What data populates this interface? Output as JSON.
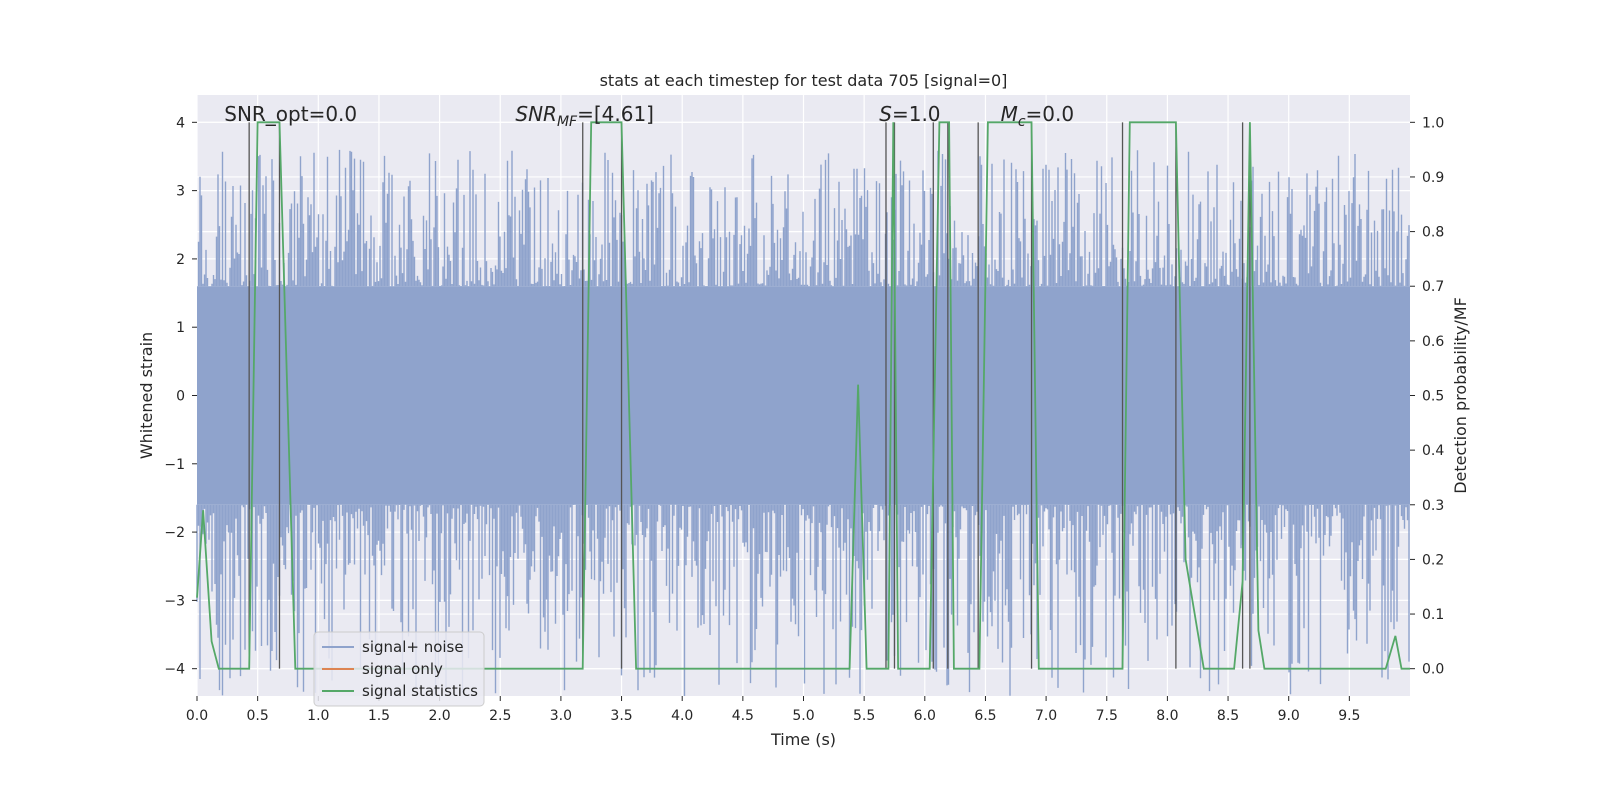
{
  "chart_data": {
    "type": "line",
    "title": "stats at each timestep for test data 705 [signal=0]",
    "xlabel": "Time (s)",
    "ylabel_left": "Whitened strain",
    "ylabel_right": "Detection probability/MF",
    "xlim": [
      0.0,
      10.0
    ],
    "ylim_left": [
      -4.4,
      4.4
    ],
    "ylim_right": [
      -0.05,
      1.05
    ],
    "xticks": [
      "0.0",
      "0.5",
      "1.0",
      "1.5",
      "2.0",
      "2.5",
      "3.0",
      "3.5",
      "4.0",
      "4.5",
      "5.0",
      "5.5",
      "6.0",
      "6.5",
      "7.0",
      "7.5",
      "8.0",
      "8.5",
      "9.0",
      "9.5"
    ],
    "yticks_left": [
      "−4",
      "−3",
      "−2",
      "−1",
      "0",
      "1",
      "2",
      "3",
      "4"
    ],
    "yticks_right": [
      "0.0",
      "0.1",
      "0.2",
      "0.3",
      "0.4",
      "0.5",
      "0.6",
      "0.7",
      "0.8",
      "0.9",
      "1.0"
    ],
    "grid": true,
    "legend_position": "lower-left",
    "annotations": [
      {
        "name": "snr-opt",
        "x": 0.2,
        "text": "SNR_opt=0.0"
      },
      {
        "name": "snr-mf",
        "x": 2.6,
        "prefix": "SNR",
        "sub": "MF",
        "suffix": "=[4.61]"
      },
      {
        "name": "s-value",
        "x": 5.6,
        "prefix": "S",
        "suffix": "=1.0"
      },
      {
        "name": "mc-value",
        "x": 6.6,
        "prefix": "M",
        "sub": "c",
        "suffix": "=0.0"
      }
    ],
    "series": [
      {
        "name": "signal+ noise",
        "color": "#8fa3cc",
        "axis": "left",
        "envelope": {
          "lower": -1.6,
          "upper": 1.6,
          "spike_max": 3.6,
          "spike_min": -4.0
        }
      },
      {
        "name": "signal only",
        "color": "#dd8452",
        "axis": "left",
        "values": []
      },
      {
        "name": "signal statistics",
        "color": "#55a868",
        "axis": "right",
        "x": [
          0.0,
          0.05,
          0.12,
          0.18,
          0.43,
          0.5,
          0.68,
          0.81,
          3.18,
          3.25,
          3.5,
          3.62,
          5.38,
          5.45,
          5.52,
          5.7,
          5.74,
          5.78,
          6.04,
          6.12,
          6.2,
          6.24,
          6.3,
          6.45,
          6.52,
          6.88,
          6.94,
          7.63,
          7.69,
          8.07,
          8.15,
          8.3,
          8.55,
          8.62,
          8.68,
          8.75,
          8.8,
          9.8,
          9.88,
          9.93,
          10.0
        ],
        "values": [
          0.13,
          0.29,
          0.05,
          0.0,
          0.0,
          1.0,
          1.0,
          0.0,
          0.0,
          1.0,
          1.0,
          0.0,
          0.0,
          0.52,
          0.0,
          0.0,
          1.0,
          0.0,
          0.0,
          1.0,
          1.0,
          0.0,
          0.0,
          0.0,
          1.0,
          1.0,
          0.0,
          0.0,
          1.0,
          1.0,
          0.2,
          0.0,
          0.0,
          0.16,
          1.0,
          0.07,
          0.0,
          0.0,
          0.06,
          0.0,
          0.0
        ]
      }
    ],
    "vertical_markers_x": [
      0.43,
      0.68,
      3.18,
      3.5,
      5.68,
      5.75,
      6.07,
      6.19,
      6.44,
      6.88,
      7.63,
      8.07,
      8.62,
      8.68
    ]
  }
}
